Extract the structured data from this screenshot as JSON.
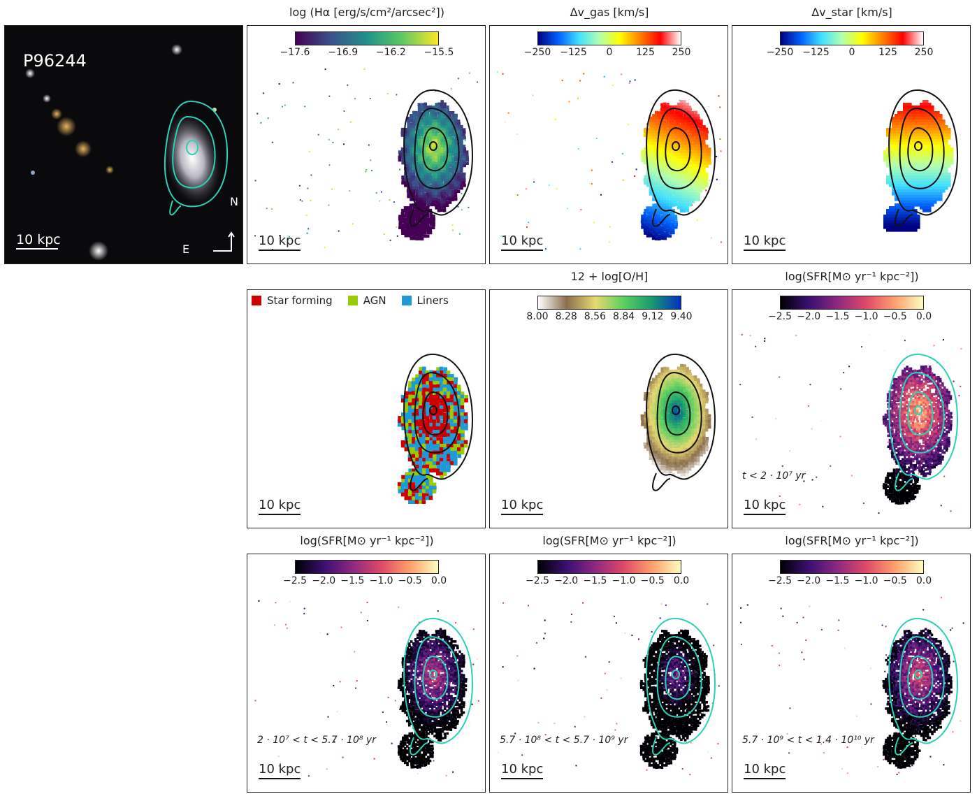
{
  "galaxy_id": "P96244",
  "scale_label": "10 kpc",
  "compass": {
    "north": "N",
    "east": "E"
  },
  "panels": {
    "halpha": {
      "title": "log (Hα [erg/s/cm²/arcsec²])",
      "ticks": [
        "−17.6",
        "−16.9",
        "−16.2",
        "−15.5"
      ],
      "colormap": [
        "#440154",
        "#3b528b",
        "#21918c",
        "#5ec962",
        "#fde725"
      ]
    },
    "vgas": {
      "title": "Δv_gas [km/s]",
      "ticks": [
        "−250",
        "−125",
        "0",
        "125",
        "250"
      ],
      "colormap": [
        "#000080",
        "#0060ff",
        "#40e0ff",
        "#b0ffb0",
        "#ffff00",
        "#ff8000",
        "#ff0000",
        "#ffffff"
      ]
    },
    "vstar": {
      "title": "Δv_star [km/s]",
      "ticks": [
        "−250",
        "−125",
        "0",
        "125",
        "250"
      ],
      "colormap": [
        "#000080",
        "#0060ff",
        "#40e0ff",
        "#b0ffb0",
        "#ffff00",
        "#ff8000",
        "#ff0000",
        "#ffffff"
      ]
    },
    "bpt": {
      "legend": [
        {
          "label": "Star forming",
          "color": "#cc0000"
        },
        {
          "label": "AGN",
          "color": "#99cc00"
        },
        {
          "label": "Liners",
          "color": "#1e9bd6"
        }
      ]
    },
    "oh": {
      "title": "12 + log[O/H]",
      "ticks": [
        "8.00",
        "8.28",
        "8.56",
        "8.84",
        "9.12",
        "9.40"
      ],
      "colormap": [
        "#ffffff",
        "#8b6f4e",
        "#e8d870",
        "#5cd060",
        "#1a9870",
        "#0030c0"
      ]
    },
    "sfr_young": {
      "title": "log(SFR[M⊙ yr⁻¹ kpc⁻²])",
      "ticks": [
        "−2.5",
        "−2.0",
        "−1.5",
        "−1.0",
        "−0.5",
        "0.0"
      ],
      "colormap": [
        "#000004",
        "#3b0f70",
        "#8c2981",
        "#de4968",
        "#fe9f6d",
        "#fcfdbf"
      ],
      "time_label": "t < 2 · 10⁷ yr"
    },
    "sfr_1": {
      "title": "log(SFR[M⊙ yr⁻¹ kpc⁻²])",
      "ticks": [
        "−2.5",
        "−2.0",
        "−1.5",
        "−1.0",
        "−0.5",
        "0.0"
      ],
      "colormap": [
        "#000004",
        "#3b0f70",
        "#8c2981",
        "#de4968",
        "#fe9f6d",
        "#fcfdbf"
      ],
      "time_label": "2 · 10⁷ < t < 5.7 · 10⁸ yr"
    },
    "sfr_2": {
      "title": "log(SFR[M⊙ yr⁻¹ kpc⁻²])",
      "ticks": [
        "−2.5",
        "−2.0",
        "−1.5",
        "−1.0",
        "−0.5",
        "0.0"
      ],
      "colormap": [
        "#000004",
        "#3b0f70",
        "#8c2981",
        "#de4968",
        "#fe9f6d",
        "#fcfdbf"
      ],
      "time_label": "5.7 · 10⁸ < t < 5.7 · 10⁹ yr"
    },
    "sfr_3": {
      "title": "log(SFR[M⊙ yr⁻¹ kpc⁻²])",
      "ticks": [
        "−2.5",
        "−2.0",
        "−1.5",
        "−1.0",
        "−0.5",
        "0.0"
      ],
      "colormap": [
        "#000004",
        "#3b0f70",
        "#8c2981",
        "#de4968",
        "#fe9f6d",
        "#fcfdbf"
      ],
      "time_label": "5.7 · 10⁹ < t < 1.4 · 10¹⁰ yr"
    }
  }
}
